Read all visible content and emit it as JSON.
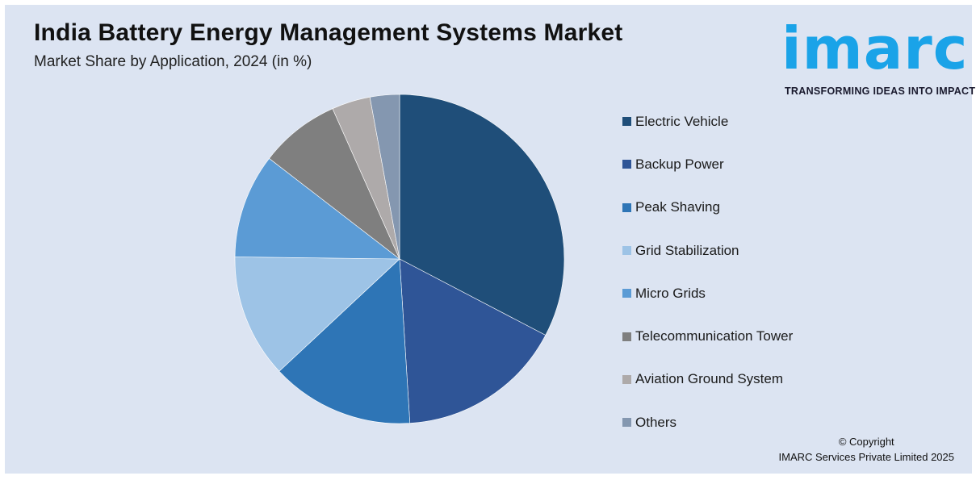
{
  "header": {
    "title": "India Battery Energy Management Systems Market",
    "subtitle": "Market Share by Application, 2024 (in %)"
  },
  "logo": {
    "word": "imarc",
    "tagline": "TRANSFORMING IDEAS INTO IMPACT",
    "color": "#1aa3e8"
  },
  "footer": {
    "copyright_line1": "© Copyright",
    "copyright_line2": "IMARC Services Private Limited 2025"
  },
  "chart_data": {
    "type": "pie",
    "title": "India Battery Energy Management Systems Market",
    "subtitle": "Market Share by Application, 2024 (in %)",
    "legend_position": "right",
    "start_angle": "12 o'clock, clockwise",
    "series": [
      {
        "name": "Electric Vehicle",
        "value": 32.8,
        "color": "#1f4e79"
      },
      {
        "name": "Backup Power",
        "value": 16.4,
        "color": "#2f5597"
      },
      {
        "name": "Peak Shaving",
        "value": 14.1,
        "color": "#2e75b6"
      },
      {
        "name": "Grid Stabilization",
        "value": 12.2,
        "color": "#9dc3e6"
      },
      {
        "name": "Micro Grids",
        "value": 10.3,
        "color": "#5b9bd5"
      },
      {
        "name": "Telecommunication Tower",
        "value": 7.9,
        "color": "#7f7f7f"
      },
      {
        "name": "Aviation Ground System",
        "value": 3.8,
        "color": "#aeaaaa"
      },
      {
        "name": "Others",
        "value": 2.9,
        "color": "#8497b0"
      }
    ]
  }
}
